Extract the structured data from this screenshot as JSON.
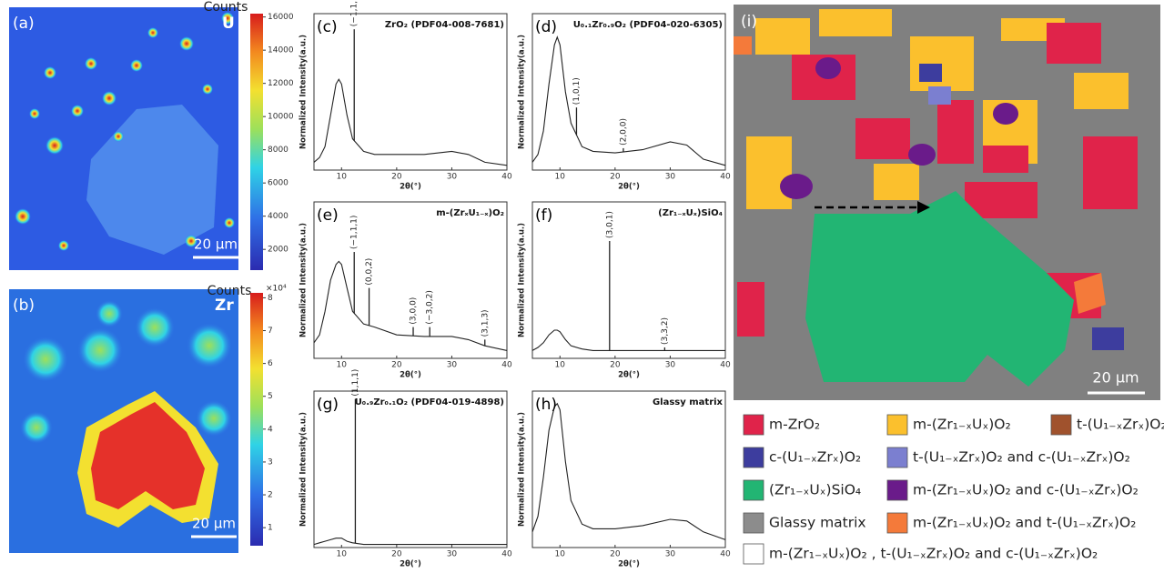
{
  "panel_a": {
    "label": "(a)",
    "element": "U",
    "scale_bar": "20 μm",
    "colorbar": {
      "title": "Counts",
      "clim": [
        750,
        16200
      ],
      "ticks": [
        2000,
        4000,
        6000,
        8000,
        10000,
        12000,
        14000,
        16000
      ]
    }
  },
  "panel_b": {
    "label": "(b)",
    "element": "Zr",
    "scale_bar": "20 μm",
    "colorbar": {
      "title": "Counts",
      "multiplier": "×10⁴",
      "clim": [
        0.45,
        8.15
      ],
      "ticks": [
        1,
        2,
        3,
        4,
        5,
        6,
        7,
        8
      ]
    }
  },
  "xrd": {
    "type": "line",
    "xlabel": "2θ(°)",
    "ylabel": "Normalized Intensity(a.u.)",
    "xlim": [
      5,
      40
    ],
    "xticks": [
      10,
      20,
      30,
      40
    ],
    "ylim": [
      0,
      1
    ],
    "x": [
      5,
      6,
      7,
      8,
      9,
      9.5,
      10,
      11,
      12,
      14,
      16,
      20,
      25,
      30,
      33,
      36,
      40
    ],
    "panels": [
      {
        "label": "(c)",
        "title": "ZrO₂ (PDF04-008-7681)",
        "values": [
          0.05,
          0.08,
          0.15,
          0.35,
          0.55,
          0.58,
          0.55,
          0.35,
          0.2,
          0.12,
          0.1,
          0.1,
          0.1,
          0.12,
          0.1,
          0.05,
          0.03
        ],
        "peaks": [
          {
            "x": 12.3,
            "top": 0.9,
            "label": "(−1,1,1)"
          }
        ]
      },
      {
        "label": "(d)",
        "title": "U₀.₁Zr₀.₉O₂ (PDF04-020-6305)",
        "values": [
          0.05,
          0.1,
          0.25,
          0.55,
          0.8,
          0.85,
          0.8,
          0.5,
          0.3,
          0.15,
          0.12,
          0.11,
          0.13,
          0.18,
          0.16,
          0.07,
          0.03
        ],
        "peaks": [
          {
            "x": 13,
            "top": 0.4,
            "label": "(1,0,1)"
          },
          {
            "x": 21.5,
            "top": 0.14,
            "label": "(2,0,0)"
          }
        ]
      },
      {
        "label": "(e)",
        "title": "m-(ZrₓU₁₋ₓ)O₂",
        "values": [
          0.1,
          0.15,
          0.3,
          0.5,
          0.6,
          0.62,
          0.6,
          0.45,
          0.3,
          0.22,
          0.2,
          0.15,
          0.14,
          0.14,
          0.12,
          0.08,
          0.05
        ],
        "peaks": [
          {
            "x": 12.3,
            "top": 0.68,
            "label": "(−1,1,1)"
          },
          {
            "x": 15,
            "top": 0.45,
            "label": "(0,0,2)"
          },
          {
            "x": 23,
            "top": 0.2,
            "label": "(3,0,0)"
          },
          {
            "x": 26,
            "top": 0.2,
            "label": "(−3,0,2)"
          },
          {
            "x": 36,
            "top": 0.12,
            "label": "(3,1,3)"
          }
        ]
      },
      {
        "label": "(f)",
        "title": "(Zr₁₋ₓUₓ)SiO₄",
        "values": [
          0.05,
          0.07,
          0.1,
          0.15,
          0.18,
          0.18,
          0.17,
          0.12,
          0.08,
          0.06,
          0.05,
          0.05,
          0.05,
          0.05,
          0.05,
          0.05,
          0.05
        ],
        "peaks": [
          {
            "x": 19,
            "top": 0.75,
            "label": "(3,0,1)"
          },
          {
            "x": 29,
            "top": 0.07,
            "label": "(3,3,2)"
          }
        ]
      },
      {
        "label": "(g)",
        "title": "U₀.₉Zr₀.₁O₂ (PDF04-019-4898)",
        "values": [
          0.02,
          0.03,
          0.04,
          0.05,
          0.06,
          0.06,
          0.06,
          0.04,
          0.03,
          0.02,
          0.02,
          0.02,
          0.02,
          0.02,
          0.02,
          0.02,
          0.02
        ],
        "peaks": [
          {
            "x": 12.5,
            "top": 0.95,
            "label": "(1,1,1)"
          }
        ]
      },
      {
        "label": "(h)",
        "title": "Glassy matrix",
        "values": [
          0.1,
          0.2,
          0.45,
          0.75,
          0.9,
          0.92,
          0.88,
          0.55,
          0.3,
          0.15,
          0.12,
          0.12,
          0.14,
          0.18,
          0.17,
          0.1,
          0.05
        ],
        "peaks": []
      }
    ]
  },
  "phase_map": {
    "label": "(i)",
    "scale_bar": "20 μm",
    "legend": [
      [
        {
          "label": "m-ZrO₂",
          "color": "#e0234a"
        },
        {
          "label": "m-(Zr₁₋ₓUₓ)O₂",
          "color": "#fbc02d"
        },
        {
          "label": "t-(U₁₋ₓZrₓ)O₂",
          "color": "#a0522d"
        }
      ],
      [
        {
          "label": "c-(U₁₋ₓZrₓ)O₂",
          "color": "#3d3d9e"
        },
        {
          "label": "t-(U₁₋ₓZrₓ)O₂ and c-(U₁₋ₓZrₓ)O₂",
          "color": "#7b7fd0"
        }
      ],
      [
        {
          "label": "(Zr₁₋ₓUₓ)SiO₄",
          "color": "#22b573"
        },
        {
          "label": "m-(Zr₁₋ₓUₓ)O₂ and c-(U₁₋ₓZrₓ)O₂",
          "color": "#6a1b8a"
        }
      ],
      [
        {
          "label": "Glassy matrix",
          "color": "#8c8c8c"
        },
        {
          "label": "m-(Zr₁₋ₓUₓ)O₂ and t-(U₁₋ₓZrₓ)O₂",
          "color": "#f47a3a"
        }
      ],
      [
        {
          "label": "m-(Zr₁₋ₓUₓ)O₂ , t-(U₁₋ₓZrₓ)O₂ and c-(U₁₋ₓZrₓ)O₂",
          "color": "#ffffff"
        }
      ]
    ]
  }
}
